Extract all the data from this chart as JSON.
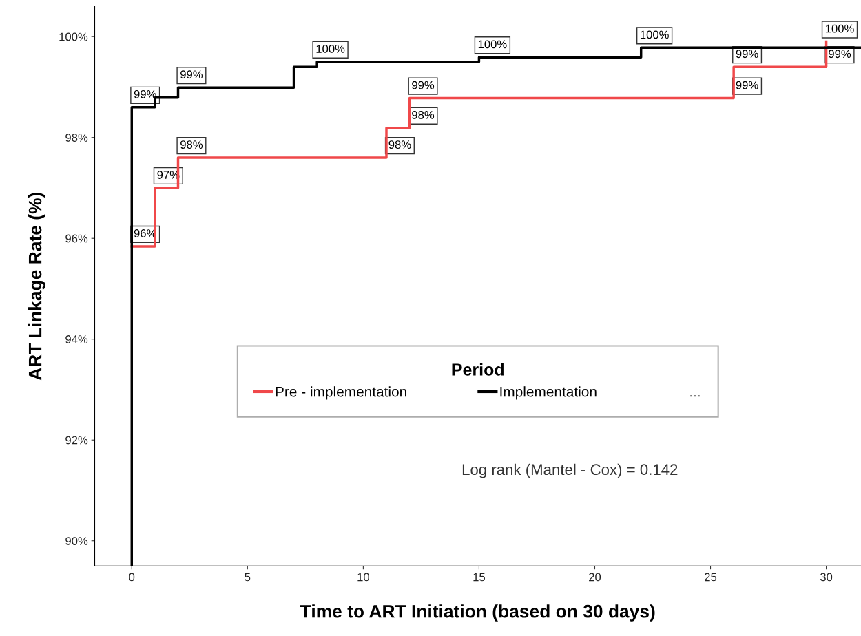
{
  "chart_data": {
    "type": "step",
    "xlabel": "Time to ART Initiation (based on 30 days)",
    "ylabel": "ART Linkage Rate (%)",
    "legend_title": "Period",
    "legend": "center",
    "grid": false,
    "xlim": [
      -1.6,
      31.5
    ],
    "xticks": [
      0,
      5,
      10,
      15,
      20,
      25,
      30
    ],
    "ylim": [
      89.5,
      100.6
    ],
    "yticks": [
      {
        "value": 90,
        "label": "90%"
      },
      {
        "value": 92,
        "label": "92%"
      },
      {
        "value": 94,
        "label": "94%"
      },
      {
        "value": 96,
        "label": "96%"
      },
      {
        "value": 98,
        "label": "98%"
      },
      {
        "value": 100,
        "label": "100%"
      }
    ],
    "series": [
      {
        "name": "Pre - implementation",
        "color": "#f0484a",
        "x": [
          0,
          1,
          2,
          11,
          12,
          26,
          30
        ],
        "values": [
          95.84,
          97.0,
          97.6,
          98.19,
          98.78,
          99.4,
          99.9
        ]
      },
      {
        "name": "Implementation",
        "color": "#000000",
        "x": [
          0,
          0,
          1,
          2,
          7,
          8,
          15,
          22,
          31.5
        ],
        "values": [
          89.5,
          98.6,
          98.79,
          98.99,
          99.4,
          99.5,
          99.59,
          99.78,
          99.78
        ]
      }
    ],
    "annotations": [
      {
        "text": "96%",
        "x": 0,
        "y": 95.84
      },
      {
        "text": "97%",
        "x": 1,
        "y": 97.0
      },
      {
        "text": "98%",
        "x": 2,
        "y": 97.6
      },
      {
        "text": "98%",
        "x": 11,
        "y": 97.6
      },
      {
        "text": "98%",
        "x": 12,
        "y": 98.19
      },
      {
        "text": "99%",
        "x": 12,
        "y": 98.78
      },
      {
        "text": "99%",
        "x": 26,
        "y": 98.78
      },
      {
        "text": "99%",
        "x": 30,
        "y": 99.4
      },
      {
        "text": "99%",
        "x": 0,
        "y": 98.6
      },
      {
        "text": "99%",
        "x": 2,
        "y": 98.99
      },
      {
        "text": "100%",
        "x": 8,
        "y": 99.5
      },
      {
        "text": "100%",
        "x": 15,
        "y": 99.59
      },
      {
        "text": "100%",
        "x": 22,
        "y": 99.78
      },
      {
        "text": "99%",
        "x": 26,
        "y": 99.4
      },
      {
        "text": "100%",
        "x": 30,
        "y": 99.9
      },
      "...",
      "Log rank (Mantel - Cox) = 0.142"
    ]
  }
}
